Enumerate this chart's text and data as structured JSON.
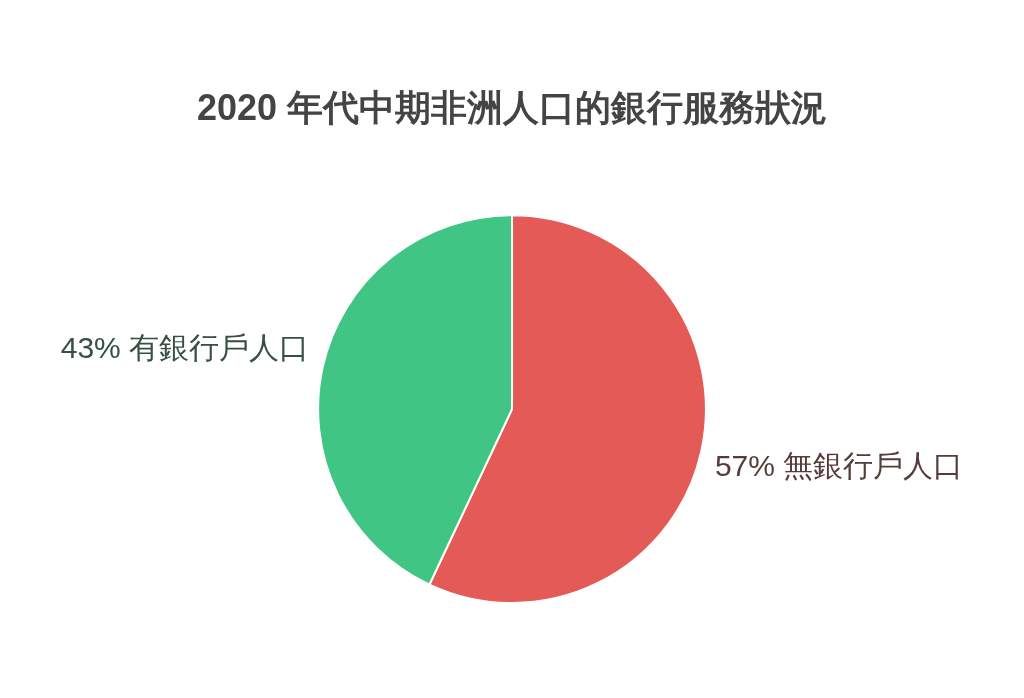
{
  "chart_data": {
    "type": "pie",
    "title": "2020 年代中期非洲人口的銀行服務狀況",
    "categories": [
      "無銀行戶人口",
      "有銀行戶人口"
    ],
    "values": [
      57,
      43
    ],
    "colors": [
      "#e35a56",
      "#40c585"
    ],
    "value_labels": [
      "57%",
      "43%"
    ],
    "legend": false
  }
}
